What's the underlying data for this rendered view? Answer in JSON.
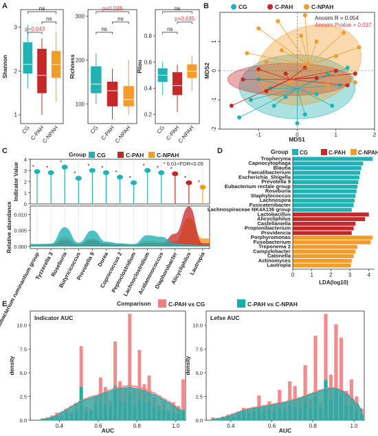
{
  "colors": {
    "cg": "#20B2B4",
    "cpah": "#C62828",
    "cnpah": "#F39C2C",
    "comp1": "#F08080",
    "comp2": "#14AFA8",
    "sig": "#E53935"
  },
  "groups": [
    "CG",
    "C-PAH",
    "C-NPAH"
  ],
  "panels": {
    "A": "A",
    "B": "B",
    "C": "C",
    "D": "D",
    "E": "E"
  },
  "chart_data": [
    {
      "type": "box",
      "panel": "A",
      "ylabel": "Shannon",
      "ylim": [
        0.8,
        3.4
      ],
      "yticks": [
        1,
        2,
        3
      ],
      "categories": [
        "CG",
        "C-PAH",
        "C-NPAH"
      ],
      "boxes": [
        {
          "min": 1.6,
          "q1": 1.95,
          "median": 2.15,
          "q3": 2.65,
          "max": 3.05
        },
        {
          "min": 1.0,
          "q1": 1.5,
          "median": 1.9,
          "q3": 2.5,
          "max": 2.75
        },
        {
          "min": 1.3,
          "q1": 1.85,
          "median": 2.15,
          "q3": 2.45,
          "max": 2.9
        }
      ],
      "comparisons": [
        {
          "a": 0,
          "b": 1,
          "label": "p=0.043",
          "sig": true,
          "level": 0
        },
        {
          "a": 1,
          "b": 2,
          "label": "ns",
          "sig": false,
          "level": 1
        },
        {
          "a": 0,
          "b": 2,
          "label": "ns",
          "sig": false,
          "level": 2
        }
      ]
    },
    {
      "type": "box",
      "panel": "A",
      "ylabel": "Richness",
      "ylim": [
        55,
        315
      ],
      "yticks": [
        100,
        200,
        300
      ],
      "categories": [
        "CG",
        "C-PAH",
        "C-NPAH"
      ],
      "boxes": [
        {
          "min": 100,
          "q1": 125,
          "median": 145,
          "q3": 185,
          "max": 215
        },
        {
          "min": 65,
          "q1": 95,
          "median": 130,
          "q3": 150,
          "max": 180
        },
        {
          "min": 75,
          "q1": 95,
          "median": 110,
          "q3": 140,
          "max": 200
        }
      ],
      "comparisons": [
        {
          "a": 0,
          "b": 1,
          "label": "ns",
          "sig": false,
          "level": 0
        },
        {
          "a": 1,
          "b": 2,
          "label": "ns",
          "sig": false,
          "level": 1
        },
        {
          "a": 0,
          "b": 2,
          "label": "p=0.026",
          "sig": true,
          "level": 2
        }
      ]
    },
    {
      "type": "box",
      "panel": "A",
      "ylabel": "Pilou",
      "ylim": [
        0.13,
        1.0
      ],
      "yticks": [
        0.2,
        0.4,
        0.6,
        0.8
      ],
      "categories": [
        "CG",
        "C-PAH",
        "C-NPAH"
      ],
      "boxes": [
        {
          "min": 0.35,
          "q1": 0.45,
          "median": 0.5,
          "q3": 0.55,
          "max": 0.6
        },
        {
          "min": 0.22,
          "q1": 0.35,
          "median": 0.42,
          "q3": 0.52,
          "max": 0.58
        },
        {
          "min": 0.38,
          "q1": 0.48,
          "median": 0.53,
          "q3": 0.58,
          "max": 0.65
        }
      ],
      "comparisons": [
        {
          "a": 0,
          "b": 1,
          "label": "ns",
          "sig": false,
          "level": 0
        },
        {
          "a": 1,
          "b": 2,
          "label": "p=0.035",
          "sig": true,
          "level": 1
        },
        {
          "a": 0,
          "b": 2,
          "label": "ns",
          "sig": false,
          "level": 2
        }
      ]
    },
    {
      "type": "scatter",
      "panel": "B",
      "xlabel": "MDS1",
      "ylabel": "MDS2",
      "xlim": [
        -2,
        2
      ],
      "ylim": [
        -2,
        2
      ],
      "xticks": [
        -1,
        0,
        1,
        2
      ],
      "yticks": [
        -2,
        -1,
        0,
        1
      ],
      "annotation1": "Anosim R = 0.054",
      "annotation2": "Anosim Pvalue = 0.037",
      "centroids": [
        [
          0.0,
          -0.6
        ],
        [
          -0.2,
          -0.3
        ],
        [
          0.3,
          0.2
        ]
      ],
      "ellipses": [
        {
          "cx": 0.0,
          "cy": -0.55,
          "rx": 1.5,
          "ry": 1.1,
          "angle": 0
        },
        {
          "cx": -0.2,
          "cy": -0.3,
          "rx": 1.6,
          "ry": 0.55,
          "angle": 0
        },
        {
          "cx": 0.3,
          "cy": 0.2,
          "rx": 1.4,
          "ry": 1.3,
          "angle": 20
        }
      ],
      "points": [
        [
          [
            -1.5,
            -1.6
          ],
          [
            -1.2,
            -1.0
          ],
          [
            -0.6,
            -1.2
          ],
          [
            -0.3,
            -0.9
          ],
          [
            0.2,
            -1.5
          ],
          [
            0.9,
            -1.2
          ],
          [
            0.5,
            -0.8
          ],
          [
            -0.7,
            -0.6
          ],
          [
            1.1,
            -0.5
          ],
          [
            0.0,
            -1.8
          ],
          [
            1.3,
            0.1
          ],
          [
            0.8,
            -0.1
          ],
          [
            -1.0,
            -0.3
          ]
        ],
        [
          [
            -1.7,
            -1.2
          ],
          [
            -1.4,
            -0.3
          ],
          [
            -1.0,
            0.05
          ],
          [
            -0.3,
            -0.1
          ],
          [
            0.5,
            -0.25
          ],
          [
            1.0,
            0.0
          ],
          [
            1.3,
            -0.5
          ],
          [
            1.5,
            -0.1
          ],
          [
            0.2,
            0.1
          ],
          [
            -0.8,
            -0.7
          ]
        ],
        [
          [
            -1.0,
            1.45
          ],
          [
            -0.5,
            1.7
          ],
          [
            0.1,
            1.2
          ],
          [
            0.5,
            1.0
          ],
          [
            1.0,
            0.5
          ],
          [
            1.6,
            0.8
          ],
          [
            1.5,
            -0.4
          ],
          [
            0.8,
            -0.5
          ],
          [
            -0.2,
            -0.4
          ],
          [
            -0.8,
            0.3
          ],
          [
            -1.3,
            0.6
          ],
          [
            1.2,
            1.3
          ],
          [
            0.2,
            1.9
          ],
          [
            -0.4,
            0.7
          ]
        ]
      ]
    },
    {
      "type": "lollipop",
      "panel": "C",
      "legend_title": "Group",
      "ylabel_top": "Indicator Value",
      "ylabel_bottom": "Relative abundance",
      "annotation": "* 0.01<FDR<0.05",
      "ylim_top": [
        0,
        4
      ],
      "yticks_top": [
        0,
        1,
        2,
        3,
        4
      ],
      "ylim_bottom": [
        0,
        0.012
      ],
      "yticks_bottom": [
        "0.000",
        "0.005",
        "0.010"
      ],
      "categories": [
        "Eubacterium ruminantium group",
        "Tyzzerella 3",
        "Roseburia",
        "Butyricicoccus",
        "Prevotella 9",
        "Dorea",
        "Coprococcus 2",
        "Peptoclostridium",
        "Lachnoclostridium",
        "Acidaminococcus",
        "Diaphorobacter",
        "Alicycliphilus",
        "Lautropia"
      ],
      "group_index": [
        0,
        0,
        0,
        0,
        0,
        0,
        0,
        0,
        0,
        0,
        1,
        1,
        2
      ],
      "values": [
        2.9,
        2.8,
        3.3,
        2.3,
        3.0,
        2.8,
        2.4,
        1.9,
        3.0,
        2.8,
        2.7,
        1.9,
        1.5
      ],
      "stars": [
        "*",
        "*",
        "*",
        "*",
        "*",
        "*",
        "*",
        "*",
        "*",
        "*",
        "*",
        "*",
        "*"
      ],
      "density_cg": [
        0.0008,
        0.0009,
        0.006,
        0.0012,
        0.005,
        0.0015,
        0.001,
        0.0008,
        0.0035,
        0.003,
        0.001,
        0.0006,
        0.0004
      ],
      "density_cpah": [
        0.0004,
        0.0005,
        0.002,
        0.0006,
        0.002,
        0.0008,
        0.0005,
        0.0004,
        0.0012,
        0.001,
        0.004,
        0.0125,
        0.001
      ],
      "density_cnpah": [
        0.0006,
        0.0007,
        0.003,
        0.0008,
        0.0025,
        0.001,
        0.0007,
        0.0005,
        0.0018,
        0.0014,
        0.0015,
        0.009,
        0.0025
      ]
    },
    {
      "type": "bar",
      "orientation": "horizontal",
      "panel": "D",
      "legend_title": "Group",
      "xlabel": "LDA(log10)",
      "xlim": [
        0,
        4.3
      ],
      "xticks": [
        0,
        1,
        2,
        3,
        4
      ],
      "categories": [
        "Tropheryma",
        "Capnocytophaga",
        "Blautia",
        "Faecalibacterium",
        "Escherichia_Shigella",
        "Prevotella 9",
        "Eubacterium rectale group",
        "Roseburia",
        "Staphylococcus",
        "Lachnospira",
        "Fusicatenibacter",
        "Lachnospiraceae NK4A136 group",
        "Lactobacillus",
        "Alicycliphilus",
        "Castellaniella",
        "Propionibacterium",
        "Providencia",
        "Porphyromonas",
        "Fusobacterium",
        "Treponema 2",
        "Campylobacter",
        "Catonella",
        "Actinomyces",
        "Lautropia"
      ],
      "group_index": [
        0,
        0,
        0,
        0,
        0,
        0,
        0,
        0,
        0,
        0,
        0,
        0,
        1,
        1,
        1,
        1,
        1,
        2,
        2,
        2,
        2,
        2,
        2,
        2
      ],
      "values": [
        4.2,
        3.7,
        3.6,
        3.55,
        3.5,
        3.45,
        3.4,
        3.35,
        3.3,
        3.25,
        3.2,
        3.1,
        4.0,
        3.8,
        3.3,
        3.2,
        3.1,
        4.2,
        4.1,
        3.4,
        3.3,
        3.2,
        3.1,
        3.05
      ]
    },
    {
      "type": "histogram",
      "panel": "E",
      "legend_title": "Comparison",
      "series": [
        {
          "name": "C-PAH vs CG"
        },
        {
          "name": "C-PAH vs C-NPAH"
        }
      ],
      "subplots": [
        {
          "title": "Indicator AUC",
          "xlabel": "AUC",
          "ylabel": "density",
          "xlim": [
            0.25,
            1.05
          ],
          "ylim": [
            0,
            11.5
          ],
          "xticks": [
            0.4,
            0.6,
            0.8,
            1.0
          ],
          "yticks": [
            0.0,
            2.5,
            5.0,
            7.5,
            10.0
          ],
          "bin_start": 0.3,
          "bin_width": 0.025,
          "comp1": [
            0.2,
            0.3,
            0.5,
            0.8,
            0.6,
            1.0,
            0.9,
            1.8,
            7.8,
            1.4,
            1.2,
            2.5,
            4.5,
            3.5,
            2.1,
            8.3,
            4.1,
            3.3,
            11.2,
            3.2,
            7.4,
            3.8,
            4.7,
            2.4,
            1.6,
            2.0,
            1.1,
            1.9,
            1.5,
            4.3
          ],
          "comp2": [
            0.1,
            0.2,
            0.3,
            0.5,
            0.4,
            0.8,
            0.7,
            1.0,
            3.5,
            0.9,
            1.0,
            1.6,
            1.9,
            1.7,
            1.5,
            3.6,
            2.0,
            1.8,
            2.8,
            1.6,
            2.1,
            1.7,
            1.9,
            1.3,
            1.0,
            1.1,
            0.8,
            0.9,
            0.7,
            1.1
          ],
          "kde1": [
            0.1,
            0.2,
            0.35,
            0.6,
            0.9,
            1.2,
            1.5,
            1.8,
            2.1,
            2.3,
            2.5,
            2.6,
            2.8,
            3.0,
            3.2,
            3.4,
            3.5,
            3.6,
            3.7,
            3.6,
            3.5,
            3.3,
            3.1,
            2.9,
            2.6,
            2.3,
            2.0,
            1.6,
            1.3,
            0.9
          ],
          "kde2": [
            0.08,
            0.15,
            0.3,
            0.5,
            0.8,
            1.1,
            1.4,
            1.7,
            2.0,
            2.2,
            2.35,
            2.5,
            2.7,
            2.9,
            3.05,
            3.25,
            3.35,
            3.4,
            3.45,
            3.35,
            3.25,
            3.1,
            2.9,
            2.7,
            2.45,
            2.15,
            1.85,
            1.5,
            1.2,
            0.85
          ]
        },
        {
          "title": "Lefse AUC",
          "xlabel": "AUC",
          "ylabel": "density",
          "xlim": [
            0.28,
            1.05
          ],
          "ylim": [
            0,
            11.5
          ],
          "xticks": [
            0.4,
            0.6,
            0.8,
            1.0
          ],
          "yticks": [
            0.0,
            2.5,
            5.0,
            7.5,
            10.0
          ],
          "bin_start": 0.3,
          "bin_width": 0.025,
          "comp1": [
            0.3,
            0.2,
            0.4,
            0.6,
            0.5,
            0.9,
            1.3,
            1.1,
            1.4,
            2.6,
            1.4,
            2.0,
            1.6,
            3.2,
            1.8,
            4.1,
            3.6,
            2.3,
            5.8,
            2.2,
            8.9,
            1.9,
            11.2,
            4.8,
            10.1,
            8.7,
            3.1,
            4.3,
            2.5,
            1.2
          ],
          "comp2": [
            0.1,
            0.15,
            0.3,
            0.4,
            0.35,
            0.6,
            0.8,
            0.7,
            0.9,
            1.1,
            0.9,
            1.1,
            1.0,
            1.3,
            1.1,
            1.5,
            1.4,
            1.2,
            2.0,
            1.3,
            2.5,
            1.2,
            4.2,
            2.2,
            3.2,
            2.7,
            1.6,
            1.5,
            1.0,
            0.6
          ],
          "kde1": [
            0.1,
            0.2,
            0.3,
            0.5,
            0.7,
            0.9,
            1.1,
            1.25,
            1.35,
            1.45,
            1.55,
            1.65,
            1.75,
            1.85,
            1.95,
            2.1,
            2.25,
            2.4,
            2.6,
            2.8,
            3.0,
            3.2,
            3.35,
            3.45,
            3.4,
            3.2,
            2.9,
            2.4,
            1.8,
            1.2
          ],
          "kde2": [
            0.08,
            0.15,
            0.25,
            0.4,
            0.6,
            0.8,
            1.0,
            1.15,
            1.25,
            1.35,
            1.45,
            1.55,
            1.65,
            1.75,
            1.85,
            2.0,
            2.15,
            2.3,
            2.5,
            2.7,
            2.9,
            3.1,
            3.25,
            3.35,
            3.3,
            3.1,
            2.8,
            2.3,
            1.75,
            1.15
          ]
        }
      ]
    }
  ]
}
